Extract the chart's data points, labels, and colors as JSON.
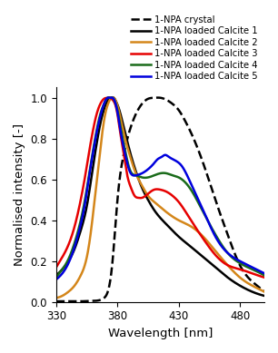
{
  "xlabel": "Wavelength [nm]",
  "ylabel": "Normalised intensity [-]",
  "xlim": [
    330,
    500
  ],
  "ylim": [
    0,
    1.05
  ],
  "xticks": [
    330,
    380,
    430,
    480
  ],
  "yticks": [
    0,
    0.2,
    0.4,
    0.6,
    0.8,
    1.0
  ],
  "legend": [
    {
      "label": "1-NPA crystal",
      "color": "#000000",
      "linestyle": "--",
      "linewidth": 1.8
    },
    {
      "label": "1-NPA loaded Calcite 1",
      "color": "#000000",
      "linestyle": "-",
      "linewidth": 1.8
    },
    {
      "label": "1-NPA loaded Calcite 2",
      "color": "#d4861a",
      "linestyle": "-",
      "linewidth": 1.8
    },
    {
      "label": "1-NPA loaded Calcite 3",
      "color": "#e60000",
      "linestyle": "-",
      "linewidth": 1.8
    },
    {
      "label": "1-NPA loaded Calcite 4",
      "color": "#1a6b1a",
      "linestyle": "-",
      "linewidth": 1.8
    },
    {
      "label": "1-NPA loaded Calcite 5",
      "color": "#0000dd",
      "linestyle": "-",
      "linewidth": 1.8
    }
  ],
  "curves": {
    "crystal": {
      "x": [
        330,
        340,
        350,
        355,
        360,
        365,
        368,
        370,
        373,
        376,
        380,
        385,
        390,
        395,
        400,
        405,
        410,
        415,
        420,
        425,
        430,
        435,
        440,
        445,
        450,
        460,
        470,
        480,
        490,
        500
      ],
      "y": [
        0.003,
        0.003,
        0.003,
        0.004,
        0.005,
        0.008,
        0.015,
        0.025,
        0.07,
        0.2,
        0.5,
        0.72,
        0.84,
        0.92,
        0.97,
        0.995,
        1.0,
        1.0,
        0.99,
        0.97,
        0.94,
        0.89,
        0.83,
        0.76,
        0.68,
        0.5,
        0.33,
        0.18,
        0.1,
        0.05
      ]
    },
    "calcite1": {
      "x": [
        330,
        335,
        340,
        345,
        350,
        355,
        358,
        361,
        364,
        367,
        370,
        373,
        375,
        377,
        379,
        381,
        385,
        390,
        395,
        400,
        405,
        410,
        420,
        430,
        440,
        450,
        460,
        470,
        480,
        490,
        500
      ],
      "y": [
        0.13,
        0.16,
        0.2,
        0.26,
        0.35,
        0.47,
        0.58,
        0.7,
        0.81,
        0.9,
        0.96,
        0.995,
        1.0,
        1.0,
        0.98,
        0.95,
        0.86,
        0.74,
        0.64,
        0.56,
        0.5,
        0.45,
        0.38,
        0.32,
        0.27,
        0.22,
        0.17,
        0.12,
        0.08,
        0.05,
        0.03
      ]
    },
    "calcite2": {
      "x": [
        330,
        335,
        340,
        345,
        350,
        355,
        358,
        361,
        364,
        367,
        370,
        373,
        375,
        377,
        379,
        381,
        385,
        390,
        395,
        400,
        405,
        410,
        420,
        430,
        440,
        450,
        460,
        470,
        480,
        490,
        500
      ],
      "y": [
        0.02,
        0.03,
        0.05,
        0.08,
        0.13,
        0.22,
        0.33,
        0.48,
        0.64,
        0.8,
        0.92,
        0.98,
        1.0,
        1.0,
        0.98,
        0.94,
        0.83,
        0.72,
        0.63,
        0.57,
        0.52,
        0.49,
        0.44,
        0.4,
        0.37,
        0.32,
        0.25,
        0.18,
        0.12,
        0.08,
        0.05
      ]
    },
    "calcite3": {
      "x": [
        330,
        335,
        340,
        345,
        350,
        354,
        357,
        360,
        363,
        366,
        369,
        372,
        374,
        376,
        378,
        380,
        382,
        385,
        388,
        391,
        394,
        397,
        400,
        405,
        410,
        415,
        420,
        425,
        430,
        440,
        450,
        460,
        470,
        480,
        490,
        500
      ],
      "y": [
        0.17,
        0.22,
        0.28,
        0.37,
        0.5,
        0.63,
        0.74,
        0.84,
        0.92,
        0.97,
        0.995,
        1.0,
        1.0,
        0.99,
        0.97,
        0.92,
        0.84,
        0.73,
        0.62,
        0.56,
        0.52,
        0.51,
        0.51,
        0.53,
        0.55,
        0.55,
        0.54,
        0.52,
        0.49,
        0.4,
        0.31,
        0.23,
        0.18,
        0.16,
        0.14,
        0.12
      ]
    },
    "calcite4": {
      "x": [
        330,
        335,
        340,
        345,
        350,
        354,
        357,
        360,
        363,
        366,
        369,
        372,
        374,
        376,
        378,
        380,
        383,
        386,
        390,
        395,
        400,
        405,
        410,
        415,
        420,
        425,
        430,
        440,
        450,
        460,
        470,
        480,
        490,
        500
      ],
      "y": [
        0.12,
        0.16,
        0.21,
        0.29,
        0.4,
        0.52,
        0.63,
        0.74,
        0.84,
        0.92,
        0.97,
        1.0,
        1.0,
        1.0,
        0.98,
        0.94,
        0.84,
        0.75,
        0.65,
        0.62,
        0.61,
        0.61,
        0.62,
        0.63,
        0.63,
        0.62,
        0.61,
        0.55,
        0.44,
        0.33,
        0.24,
        0.19,
        0.16,
        0.13
      ]
    },
    "calcite5": {
      "x": [
        330,
        335,
        340,
        345,
        350,
        354,
        357,
        360,
        363,
        366,
        369,
        372,
        374,
        376,
        378,
        380,
        383,
        386,
        390,
        395,
        400,
        405,
        410,
        413,
        416,
        419,
        422,
        425,
        428,
        432,
        440,
        450,
        460,
        470,
        480,
        490,
        500
      ],
      "y": [
        0.11,
        0.14,
        0.19,
        0.27,
        0.38,
        0.5,
        0.62,
        0.73,
        0.83,
        0.91,
        0.97,
        1.0,
        1.0,
        1.0,
        0.98,
        0.93,
        0.82,
        0.73,
        0.64,
        0.62,
        0.63,
        0.65,
        0.68,
        0.7,
        0.71,
        0.72,
        0.71,
        0.7,
        0.69,
        0.67,
        0.58,
        0.45,
        0.32,
        0.24,
        0.2,
        0.17,
        0.14
      ]
    }
  },
  "figsize": [
    3.06,
    3.89
  ],
  "dpi": 100,
  "legend_fontsize": 7.2,
  "axis_fontsize": 9.5,
  "tick_fontsize": 8.5
}
